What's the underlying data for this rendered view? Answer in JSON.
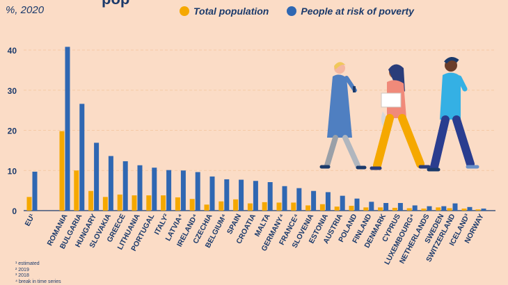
{
  "header": {
    "title_fragment": "pop",
    "unit": "%, 2020"
  },
  "legend": [
    {
      "label": "Total population",
      "color": "#f5a800"
    },
    {
      "label": "People at risk of poverty",
      "color": "#2f67b2"
    }
  ],
  "footnotes": [
    "¹ estimated",
    "² 2019",
    "³ 2018",
    "⁴ break in time series"
  ],
  "chart_data": {
    "type": "bar",
    "ylim": [
      0,
      43
    ],
    "yticks": [
      0,
      10,
      20,
      30,
      40
    ],
    "grid": true,
    "categories": [
      "EU¹",
      "ROMANIA",
      "BULGARIA",
      "HUNGARY",
      "SLOVAKIA",
      "GREECE",
      "LITHUANIA",
      "PORTUGAL",
      "ITALY²",
      "LATVIA⁴",
      "IRELAND⁴",
      "CZECHIA",
      "BELGIUM⁴",
      "SPAIN",
      "CROATIA",
      "MALTA",
      "GERMANY⁴",
      "FRANCE⁴",
      "SLOVENIA",
      "ESTONIA",
      "AUSTRIA",
      "POLAND",
      "FINLAND",
      "DENMARK",
      "CYPRUS",
      "LUXEMBOURG⁴",
      "NETHERLANDS",
      "SWEDEN",
      "SWITZERLAND",
      "ICELAND³",
      "NORWAY"
    ],
    "series": [
      {
        "name": "Total population",
        "color": "#f5a800",
        "values": [
          3.4,
          19.8,
          10.0,
          4.9,
          3.4,
          4.0,
          3.8,
          3.8,
          3.8,
          3.3,
          2.9,
          1.5,
          2.3,
          2.8,
          1.8,
          2.1,
          2.0,
          2.0,
          1.3,
          1.6,
          1.0,
          1.2,
          0.8,
          0.8,
          0.7,
          0.6,
          0.5,
          0.8,
          0.6,
          0.5,
          0.3
        ]
      },
      {
        "name": "People at risk of poverty",
        "color": "#2f67b2",
        "values": [
          9.7,
          40.8,
          26.6,
          16.9,
          13.6,
          12.3,
          11.3,
          10.7,
          10.1,
          10.0,
          9.6,
          8.5,
          7.8,
          7.7,
          7.4,
          7.1,
          6.1,
          5.6,
          4.9,
          4.6,
          3.7,
          3.0,
          2.2,
          1.9,
          1.9,
          1.3,
          1.1,
          1.1,
          1.8,
          0.9,
          0.5
        ]
      }
    ]
  }
}
